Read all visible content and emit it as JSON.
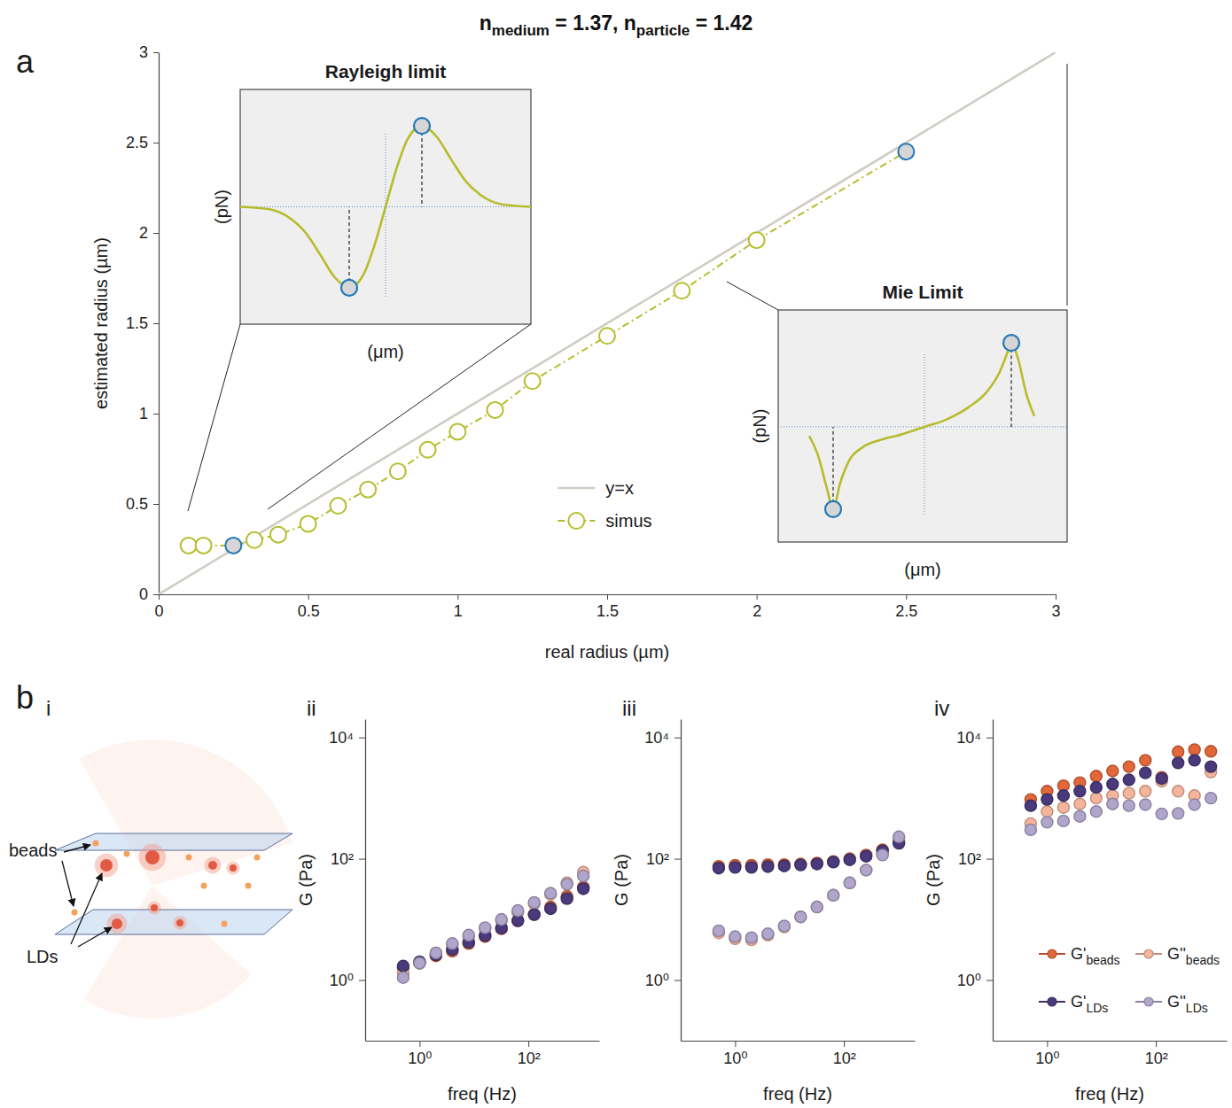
{
  "chart_data": [
    {
      "type": "line",
      "panel_label": "a",
      "title": [
        {
          "text": "n"
        },
        {
          "text": "medium",
          "sub": true
        },
        {
          "text": " = 1.37, n"
        },
        {
          "text": "particle",
          "sub": true
        },
        {
          "text": " = 1.42"
        }
      ],
      "x_label": "real radius (µm)",
      "y_label": "estimated radius (µm)",
      "xlim": [
        0,
        3
      ],
      "ylim": [
        0,
        3
      ],
      "xticks": [
        0,
        0.5,
        1,
        1.5,
        2,
        2.5,
        3
      ],
      "yticks": [
        0,
        0.5,
        1,
        1.5,
        2,
        2.5,
        3
      ],
      "legend": "lower center",
      "series": [
        {
          "name": "y=x",
          "color": "#cfccc4",
          "line_style": "solid",
          "x": [
            0,
            3
          ],
          "values": [
            0,
            3
          ]
        },
        {
          "name": "simus",
          "color": "#b5bd2c",
          "line_style": "dashdot",
          "marker": "circle",
          "x": [
            0.1,
            0.15,
            0.25,
            0.32,
            0.4,
            0.5,
            0.6,
            0.7,
            0.8,
            0.9,
            1,
            1.125,
            1.25,
            1.5,
            1.75,
            2,
            2.5
          ],
          "values": [
            0.27,
            0.27,
            0.27,
            0.3,
            0.33,
            0.39,
            0.49,
            0.58,
            0.68,
            0.8,
            0.9,
            1.02,
            1.18,
            1.43,
            1.68,
            1.96,
            2.45
          ],
          "colors": [
            "#b5bd2c",
            "#b5bd2c",
            "#2378b5",
            "#b5bd2c",
            "#b5bd2c",
            "#b5bd2c",
            "#b5bd2c",
            "#b5bd2c",
            "#b5bd2c",
            "#b5bd2c",
            "#b5bd2c",
            "#b5bd2c",
            "#b5bd2c",
            "#b5bd2c",
            "#b5bd2c",
            "#b5bd2c",
            "#2378b5"
          ]
        }
      ]
    },
    {
      "type": "line",
      "title": "Rayleigh limit",
      "x_label": "(μm)",
      "y_label": "(pN)",
      "xlim": [
        -2,
        2
      ],
      "ylim": [
        -1.45,
        1.45
      ],
      "xticks": [
        0
      ],
      "yticks": [
        0
      ],
      "grid": true,
      "tick_labels": false,
      "series": [
        {
          "color": "#b5bd2c",
          "x": [
            -2,
            -1.6,
            -1.3,
            -1.1,
            -0.9,
            -0.7,
            -0.5,
            -0.3,
            -0.15,
            0,
            0.15,
            0.3,
            0.5,
            0.7,
            0.9,
            1.1,
            1.3,
            1.6,
            2
          ],
          "values": [
            0,
            -0.03,
            -0.15,
            -0.32,
            -0.59,
            -0.87,
            -1,
            -0.83,
            -0.47,
            0,
            0.47,
            0.83,
            1,
            0.87,
            0.59,
            0.32,
            0.15,
            0.03,
            0
          ]
        },
        {
          "type": "scatter",
          "marker": "circle",
          "color": "#2378b5",
          "x": [
            -0.5,
            0.5
          ],
          "values": [
            -1,
            1
          ]
        }
      ]
    },
    {
      "type": "line",
      "title": "Mie Limit",
      "x_label": "(μm)",
      "y_label": "(pN)",
      "xlim": [
        -1.65,
        1.61
      ],
      "ylim": [
        -1.4,
        1.42
      ],
      "xticks": [
        0
      ],
      "yticks": [
        0
      ],
      "grid": true,
      "tick_labels": false,
      "series": [
        {
          "color": "#b5bd2c",
          "x": [
            -1.3,
            -1.2,
            -1.1,
            -1.03,
            -0.95,
            -0.85,
            -0.7,
            -0.5,
            -0.25,
            0,
            0.25,
            0.5,
            0.7,
            0.85,
            0.95,
            0.98,
            1.05,
            1.15,
            1.24
          ],
          "values": [
            -0.11,
            -0.35,
            -0.75,
            -1,
            -0.68,
            -0.41,
            -0.25,
            -0.16,
            -0.09,
            0,
            0.09,
            0.24,
            0.42,
            0.67,
            0.94,
            1.02,
            0.85,
            0.4,
            0.13
          ]
        },
        {
          "type": "scatter",
          "marker": "circle",
          "color": "#2378b5",
          "x": [
            -1.03,
            0.98
          ],
          "values": [
            -1,
            1.02
          ]
        }
      ]
    },
    {
      "type": "scatter",
      "panel_label": "ii",
      "x_label": "freq (Hz)",
      "y_label": "G (Pa)",
      "log": true,
      "marker": "circle",
      "xlim": [
        0.1,
        2000
      ],
      "ylim": [
        0.1,
        20000
      ],
      "xticks": [
        {
          "value": 1,
          "label": "10⁰"
        },
        {
          "value": 100,
          "label": "10²"
        }
      ],
      "yticks": [
        {
          "value": 1,
          "label": "10⁰"
        },
        {
          "value": 100,
          "label": "10²"
        },
        {
          "value": 10000,
          "label": "10⁴"
        }
      ],
      "x": [
        0.5,
        1,
        2,
        4,
        8,
        16,
        32,
        64,
        128,
        256,
        512,
        1024
      ],
      "series": [
        {
          "color": "#e2673a",
          "values": [
            1.6,
            1.9,
            2.5,
            3.0,
            4.0,
            5.2,
            7.0,
            9.5,
            12,
            16,
            24,
            34
          ]
        },
        {
          "color": "#f5b59c",
          "values": [
            1.3,
            1.9,
            2.8,
            3.8,
            5.2,
            7,
            9.5,
            13,
            18,
            26,
            40,
            60
          ]
        },
        {
          "color": "#4a3a7c",
          "values": [
            1.7,
            2.0,
            2.6,
            3.2,
            4.2,
            5.4,
            7.2,
            9.5,
            12,
            15,
            22,
            32
          ]
        },
        {
          "color": "#b0a6cc",
          "values": [
            1.1,
            1.9,
            2.8,
            4.0,
            5.5,
            7.3,
            10,
            14,
            19,
            27,
            38,
            52
          ]
        }
      ]
    },
    {
      "type": "scatter",
      "panel_label": "iii",
      "x_label": "freq (Hz)",
      "y_label": "G (Pa)",
      "log": true,
      "marker": "circle",
      "xlim": [
        0.1,
        2000
      ],
      "ylim": [
        0.1,
        20000
      ],
      "xticks": [
        {
          "value": 1,
          "label": "10⁰"
        },
        {
          "value": 100,
          "label": "10²"
        }
      ],
      "yticks": [
        {
          "value": 1,
          "label": "10⁰"
        },
        {
          "value": 100,
          "label": "10²"
        },
        {
          "value": 10000,
          "label": "10⁴"
        }
      ],
      "x": [
        0.5,
        1,
        2,
        4,
        8,
        16,
        32,
        64,
        128,
        256,
        512,
        1024
      ],
      "series": [
        {
          "color": "#e2673a",
          "values": [
            75,
            78,
            78,
            80,
            80,
            82,
            85,
            90,
            100,
            115,
            140,
            190
          ]
        },
        {
          "color": "#f5b59c",
          "values": [
            6.0,
            4.8,
            4.6,
            5.5,
            7.5,
            11,
            16,
            25,
            40,
            65,
            120,
            220
          ]
        },
        {
          "color": "#4a3a7c",
          "values": [
            70,
            72,
            72,
            74,
            76,
            79,
            82,
            88,
            96,
            110,
            135,
            180
          ]
        },
        {
          "color": "#b0a6cc",
          "values": [
            6.5,
            5.2,
            5.0,
            5.8,
            7.8,
            11,
            16,
            25,
            40,
            65,
            115,
            230
          ]
        }
      ]
    },
    {
      "type": "scatter",
      "panel_label": "iv",
      "x_label": "freq (Hz)",
      "y_label": "G (Pa)",
      "log": true,
      "marker": "circle",
      "xlim": [
        0.1,
        2000
      ],
      "ylim": [
        0.1,
        20000
      ],
      "xticks": [
        {
          "value": 1,
          "label": "10⁰"
        },
        {
          "value": 100,
          "label": "10²"
        }
      ],
      "yticks": [
        {
          "value": 1,
          "label": "10⁰"
        },
        {
          "value": 100,
          "label": "10²"
        },
        {
          "value": 10000,
          "label": "10⁴"
        }
      ],
      "legend": "lower right",
      "x": [
        0.5,
        1,
        2,
        4,
        8,
        16,
        32,
        64,
        128,
        256,
        512,
        1024
      ],
      "series": [
        {
          "name": "G'beads",
          "color": "#e2673a",
          "values": [
            950,
            1300,
            1600,
            1800,
            2300,
            2800,
            3300,
            4200,
            2200,
            5800,
            6300,
            5900
          ]
        },
        {
          "name": "G''beads",
          "color": "#f5b59c",
          "values": [
            380,
            600,
            700,
            800,
            1000,
            1100,
            1200,
            1300,
            1900,
            1300,
            1100,
            2700
          ]
        },
        {
          "name": "G'LDs",
          "color": "#4a3a7c",
          "values": [
            750,
            950,
            1100,
            1300,
            1500,
            1700,
            2000,
            2600,
            2100,
            3800,
            4200,
            3300
          ]
        },
        {
          "name": "G''LDs",
          "color": "#b0a6cc",
          "values": [
            300,
            400,
            420,
            500,
            600,
            800,
            750,
            780,
            550,
            560,
            780,
            1000
          ]
        }
      ]
    }
  ],
  "diagram": {
    "group_label": "b",
    "panel_label": "i",
    "labels": [
      "beads",
      "LDs"
    ]
  }
}
